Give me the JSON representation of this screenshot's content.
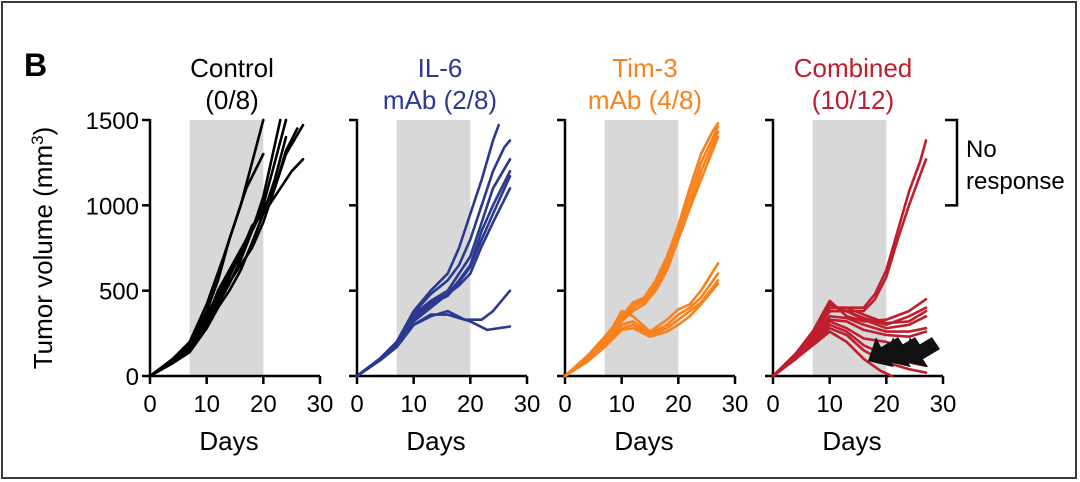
{
  "panel_label": "B",
  "ylabel_text": "Tumor volume (mm",
  "ylabel_sup": "3",
  "ylabel_close": ")",
  "bracket_label_1": "No",
  "bracket_label_2": "response",
  "colors": {
    "frame": "#3a3a3a",
    "shade": "#d8d8d8",
    "axis": "#000000",
    "control": "#000000",
    "il6": "#2b3990",
    "tim3": "#f7821e",
    "combined": "#be1e2d",
    "arrow": "#111111"
  },
  "chart_data": [
    {
      "type": "line",
      "title_line1": "Control",
      "title_line2": "(0/8)",
      "color": "#000000",
      "xlabel": "Days",
      "ylabel": "Tumor volume (mm3)",
      "xlim": [
        0,
        30
      ],
      "ylim": [
        0,
        1500
      ],
      "xticks": [
        0,
        10,
        20,
        30
      ],
      "yticks": [
        0,
        500,
        1000,
        1500
      ],
      "shaded_x": [
        7,
        20
      ],
      "series": [
        {
          "x": [
            0,
            4,
            7,
            10,
            12,
            14,
            16,
            18,
            20
          ],
          "y": [
            0,
            90,
            180,
            380,
            560,
            800,
            1000,
            1250,
            1500
          ]
        },
        {
          "x": [
            0,
            4,
            7,
            10,
            13,
            15,
            17,
            20
          ],
          "y": [
            0,
            100,
            200,
            420,
            700,
            900,
            1100,
            1300
          ]
        },
        {
          "x": [
            0,
            4,
            7,
            10,
            12,
            14,
            17,
            20,
            22,
            24
          ],
          "y": [
            0,
            80,
            150,
            330,
            500,
            620,
            800,
            1000,
            1250,
            1500
          ]
        },
        {
          "x": [
            0,
            4,
            7,
            10,
            12,
            14,
            16,
            18,
            20,
            23
          ],
          "y": [
            0,
            90,
            170,
            360,
            480,
            600,
            700,
            850,
            1050,
            1500
          ]
        },
        {
          "x": [
            0,
            4,
            7,
            10,
            12,
            14,
            16,
            18,
            20,
            22,
            24,
            27
          ],
          "y": [
            0,
            80,
            160,
            300,
            420,
            540,
            680,
            850,
            980,
            1100,
            1300,
            1470
          ]
        },
        {
          "x": [
            0,
            4,
            7,
            10,
            12,
            14,
            16,
            18,
            20,
            22,
            25,
            27
          ],
          "y": [
            0,
            85,
            170,
            320,
            450,
            580,
            720,
            880,
            950,
            1050,
            1200,
            1270
          ]
        },
        {
          "x": [
            0,
            4,
            7,
            10,
            12,
            14,
            16,
            18,
            20,
            22,
            24,
            26
          ],
          "y": [
            0,
            80,
            150,
            300,
            420,
            550,
            650,
            750,
            900,
            1100,
            1320,
            1450
          ]
        },
        {
          "x": [
            0,
            4,
            7,
            10,
            12,
            14,
            16,
            18,
            20,
            22,
            24
          ],
          "y": [
            0,
            75,
            140,
            280,
            400,
            500,
            620,
            780,
            950,
            1150,
            1400
          ]
        }
      ]
    },
    {
      "type": "line",
      "title_line1": "IL-6",
      "title_line2": "mAb (2/8)",
      "color": "#2b3990",
      "xlabel": "Days",
      "xlim": [
        0,
        30
      ],
      "ylim": [
        0,
        1500
      ],
      "xticks": [
        0,
        10,
        20,
        30
      ],
      "yticks": [
        0,
        500,
        1000,
        1500
      ],
      "shaded_x": [
        7,
        20
      ],
      "series": [
        {
          "x": [
            0,
            4,
            7,
            10,
            13,
            16,
            18,
            20,
            22,
            24,
            25
          ],
          "y": [
            0,
            100,
            200,
            380,
            500,
            600,
            750,
            950,
            1150,
            1380,
            1470
          ]
        },
        {
          "x": [
            0,
            4,
            7,
            10,
            13,
            16,
            18,
            20,
            22,
            24,
            26,
            27
          ],
          "y": [
            0,
            100,
            200,
            370,
            480,
            560,
            650,
            800,
            1000,
            1200,
            1340,
            1380
          ]
        },
        {
          "x": [
            0,
            4,
            7,
            10,
            13,
            16,
            18,
            20,
            22,
            24,
            27
          ],
          "y": [
            0,
            100,
            200,
            360,
            440,
            500,
            600,
            700,
            900,
            1100,
            1270
          ]
        },
        {
          "x": [
            0,
            4,
            7,
            10,
            13,
            16,
            18,
            20,
            22,
            24,
            27
          ],
          "y": [
            0,
            100,
            190,
            350,
            430,
            480,
            560,
            650,
            850,
            1000,
            1200
          ]
        },
        {
          "x": [
            0,
            4,
            7,
            10,
            13,
            16,
            18,
            20,
            22,
            24,
            27
          ],
          "y": [
            0,
            100,
            190,
            330,
            420,
            470,
            550,
            640,
            800,
            950,
            1170
          ]
        },
        {
          "x": [
            0,
            4,
            7,
            10,
            13,
            16,
            18,
            20,
            22,
            24,
            27
          ],
          "y": [
            0,
            100,
            180,
            320,
            400,
            480,
            530,
            600,
            760,
            900,
            1100
          ]
        },
        {
          "x": [
            0,
            4,
            7,
            10,
            13,
            16,
            19,
            22,
            24,
            27
          ],
          "y": [
            0,
            90,
            170,
            300,
            350,
            380,
            330,
            330,
            380,
            500
          ]
        },
        {
          "x": [
            0,
            4,
            7,
            10,
            13,
            16,
            20,
            23,
            27
          ],
          "y": [
            0,
            90,
            170,
            300,
            360,
            360,
            320,
            270,
            290
          ]
        }
      ]
    },
    {
      "type": "line",
      "title_line1": "Tim-3",
      "title_line2": "mAb (4/8)",
      "color": "#f7821e",
      "xlabel": "Days",
      "xlim": [
        0,
        30
      ],
      "ylim": [
        0,
        1500
      ],
      "xticks": [
        0,
        10,
        20,
        30
      ],
      "yticks": [
        0,
        500,
        1000,
        1500
      ],
      "shaded_x": [
        7,
        20
      ],
      "series": [
        {
          "x": [
            0,
            4,
            7,
            10,
            12,
            14,
            16,
            18,
            20,
            22,
            24,
            26,
            27
          ],
          "y": [
            0,
            120,
            230,
            350,
            430,
            460,
            560,
            700,
            880,
            1100,
            1300,
            1430,
            1480
          ]
        },
        {
          "x": [
            0,
            4,
            7,
            10,
            12,
            14,
            16,
            18,
            20,
            22,
            24,
            27
          ],
          "y": [
            0,
            110,
            220,
            340,
            420,
            450,
            540,
            680,
            850,
            1050,
            1250,
            1460
          ]
        },
        {
          "x": [
            0,
            4,
            7,
            10,
            12,
            14,
            16,
            18,
            20,
            22,
            24,
            27
          ],
          "y": [
            0,
            110,
            210,
            330,
            400,
            440,
            520,
            650,
            830,
            1000,
            1200,
            1430
          ]
        },
        {
          "x": [
            0,
            4,
            7,
            10,
            12,
            14,
            16,
            18,
            20,
            22,
            24,
            27
          ],
          "y": [
            0,
            100,
            200,
            320,
            380,
            420,
            500,
            620,
            800,
            980,
            1150,
            1400
          ]
        },
        {
          "x": [
            0,
            4,
            7,
            10,
            12,
            15,
            18,
            20,
            22,
            24,
            27
          ],
          "y": [
            0,
            100,
            200,
            380,
            350,
            260,
            330,
            390,
            420,
            500,
            660
          ]
        },
        {
          "x": [
            0,
            4,
            7,
            10,
            12,
            15,
            18,
            20,
            22,
            24,
            27
          ],
          "y": [
            0,
            90,
            180,
            300,
            320,
            250,
            300,
            360,
            400,
            460,
            600
          ]
        },
        {
          "x": [
            0,
            4,
            7,
            10,
            12,
            15,
            18,
            20,
            22,
            24,
            27
          ],
          "y": [
            0,
            90,
            180,
            280,
            300,
            240,
            280,
            330,
            380,
            430,
            560
          ]
        },
        {
          "x": [
            0,
            4,
            7,
            10,
            12,
            15,
            18,
            20,
            22,
            24,
            27
          ],
          "y": [
            0,
            85,
            170,
            270,
            280,
            230,
            260,
            300,
            350,
            420,
            540
          ]
        }
      ]
    },
    {
      "type": "line",
      "title_line1": "Combined",
      "title_line2": "(10/12)",
      "color": "#be1e2d",
      "xlabel": "Days",
      "xlim": [
        0,
        30
      ],
      "ylim": [
        0,
        1500
      ],
      "xticks": [
        0,
        10,
        20,
        30
      ],
      "yticks": [
        0,
        500,
        1000,
        1500
      ],
      "shaded_x": [
        7,
        20
      ],
      "series": [
        {
          "x": [
            0,
            4,
            7,
            10,
            13,
            16,
            18,
            20,
            22,
            24,
            26,
            27
          ],
          "y": [
            0,
            130,
            260,
            400,
            400,
            400,
            480,
            620,
            850,
            1080,
            1260,
            1380
          ]
        },
        {
          "x": [
            0,
            4,
            7,
            10,
            13,
            16,
            18,
            20,
            22,
            24,
            26,
            27
          ],
          "y": [
            0,
            130,
            250,
            380,
            380,
            380,
            450,
            580,
            800,
            1000,
            1180,
            1270
          ]
        },
        {
          "x": [
            0,
            4,
            7,
            10,
            13,
            16,
            20,
            24,
            27
          ],
          "y": [
            0,
            130,
            260,
            440,
            350,
            320,
            330,
            380,
            450
          ]
        },
        {
          "x": [
            0,
            4,
            7,
            10,
            13,
            16,
            20,
            24,
            27
          ],
          "y": [
            0,
            130,
            250,
            420,
            380,
            340,
            300,
            350,
            400
          ]
        },
        {
          "x": [
            0,
            4,
            7,
            10,
            13,
            16,
            20,
            24,
            27
          ],
          "y": [
            0,
            120,
            240,
            400,
            400,
            360,
            310,
            320,
            380
          ]
        },
        {
          "x": [
            0,
            4,
            7,
            10,
            13,
            16,
            20,
            24,
            27
          ],
          "y": [
            0,
            120,
            230,
            380,
            380,
            330,
            280,
            300,
            350
          ]
        },
        {
          "x": [
            0,
            4,
            7,
            10,
            13,
            16,
            20,
            24,
            27
          ],
          "y": [
            0,
            110,
            220,
            350,
            340,
            300,
            260,
            260,
            280
          ]
        },
        {
          "x": [
            0,
            4,
            7,
            10,
            13,
            16,
            20,
            24,
            27
          ],
          "y": [
            0,
            110,
            210,
            330,
            320,
            270,
            240,
            230,
            260
          ]
        },
        {
          "x": [
            0,
            4,
            7,
            10,
            13,
            16,
            20,
            24,
            27
          ],
          "y": [
            0,
            100,
            200,
            320,
            280,
            220,
            200,
            150,
            120
          ]
        },
        {
          "x": [
            0,
            4,
            7,
            10,
            13,
            16,
            20,
            24,
            27
          ],
          "y": [
            0,
            100,
            200,
            300,
            260,
            180,
            120,
            80,
            60
          ]
        },
        {
          "x": [
            0,
            4,
            7,
            10,
            13,
            16,
            20,
            24,
            27
          ],
          "y": [
            0,
            100,
            190,
            280,
            240,
            150,
            80,
            40,
            20
          ]
        },
        {
          "x": [
            0,
            4,
            7,
            10,
            13,
            16,
            19,
            21
          ],
          "y": [
            0,
            100,
            180,
            260,
            200,
            100,
            30,
            0
          ]
        }
      ],
      "bracket_range": [
        1000,
        1500
      ],
      "arrows_pointing_x": [
        21,
        24,
        27
      ]
    }
  ]
}
